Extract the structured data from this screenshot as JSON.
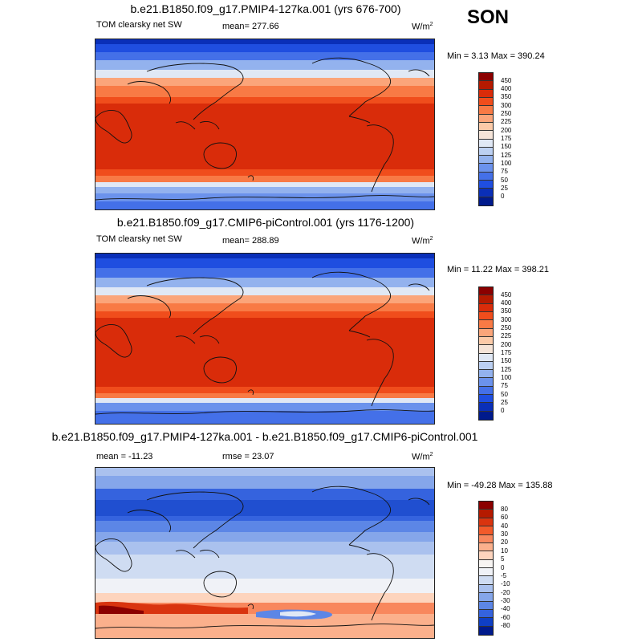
{
  "season": "SON",
  "panels": [
    {
      "title": "b.e21.B1850.f09_g17.PMIP4-127ka.001 (yrs 676-700)",
      "left_label": "TOM clearsky net SW",
      "stat_label": "mean= 277.66",
      "units": "W/m",
      "units_sup": "2",
      "minmax": "Min =   3.13 Max = 390.24",
      "colorbar_labels": [
        "450",
        "400",
        "350",
        "300",
        "250",
        "225",
        "200",
        "175",
        "150",
        "125",
        "100",
        "75",
        "50",
        "25",
        "0"
      ]
    },
    {
      "title": "b.e21.B1850.f09_g17.CMIP6-piControl.001 (yrs 1176-1200)",
      "left_label": "TOM clearsky net SW",
      "stat_label": "mean= 288.89",
      "units": "W/m",
      "units_sup": "2",
      "minmax": "Min =  11.22 Max = 398.21",
      "colorbar_labels": [
        "450",
        "400",
        "350",
        "300",
        "250",
        "225",
        "200",
        "175",
        "150",
        "125",
        "100",
        "75",
        "50",
        "25",
        "0"
      ]
    },
    {
      "title": "b.e21.B1850.f09_g17.PMIP4-127ka.001 - b.e21.B1850.f09_g17.CMIP6-piControl.001",
      "left_label": "mean = -11.23",
      "stat_label": "rmse =  23.07",
      "units": "W/m",
      "units_sup": "2",
      "minmax": "Min = -49.28 Max = 135.88",
      "colorbar_labels": [
        "80",
        "60",
        "40",
        "30",
        "20",
        "10",
        "5",
        "0",
        "-5",
        "-10",
        "-20",
        "-30",
        "-40",
        "-60",
        "-80"
      ]
    }
  ],
  "colors": {
    "field_scale": [
      "#8b0000",
      "#b51a00",
      "#d92c0a",
      "#f04d1c",
      "#f87a45",
      "#fba57a",
      "#fccaa8",
      "#f5e4d8",
      "#e0e8f5",
      "#bcd0f2",
      "#93b2ee",
      "#6b92ec",
      "#4470e8",
      "#1f4ee0",
      "#0a2fb8",
      "#001a8c"
    ],
    "diff_scale": [
      "#8b0000",
      "#b51a00",
      "#d9340f",
      "#f25a2a",
      "#f8875d",
      "#fbb08c",
      "#fdd4bd",
      "#f7f4f2",
      "#f0f2f7",
      "#cfdcf2",
      "#aac1ee",
      "#85a6ea",
      "#5c86e6",
      "#3563de",
      "#0f3fc4",
      "#001a8c"
    ]
  }
}
